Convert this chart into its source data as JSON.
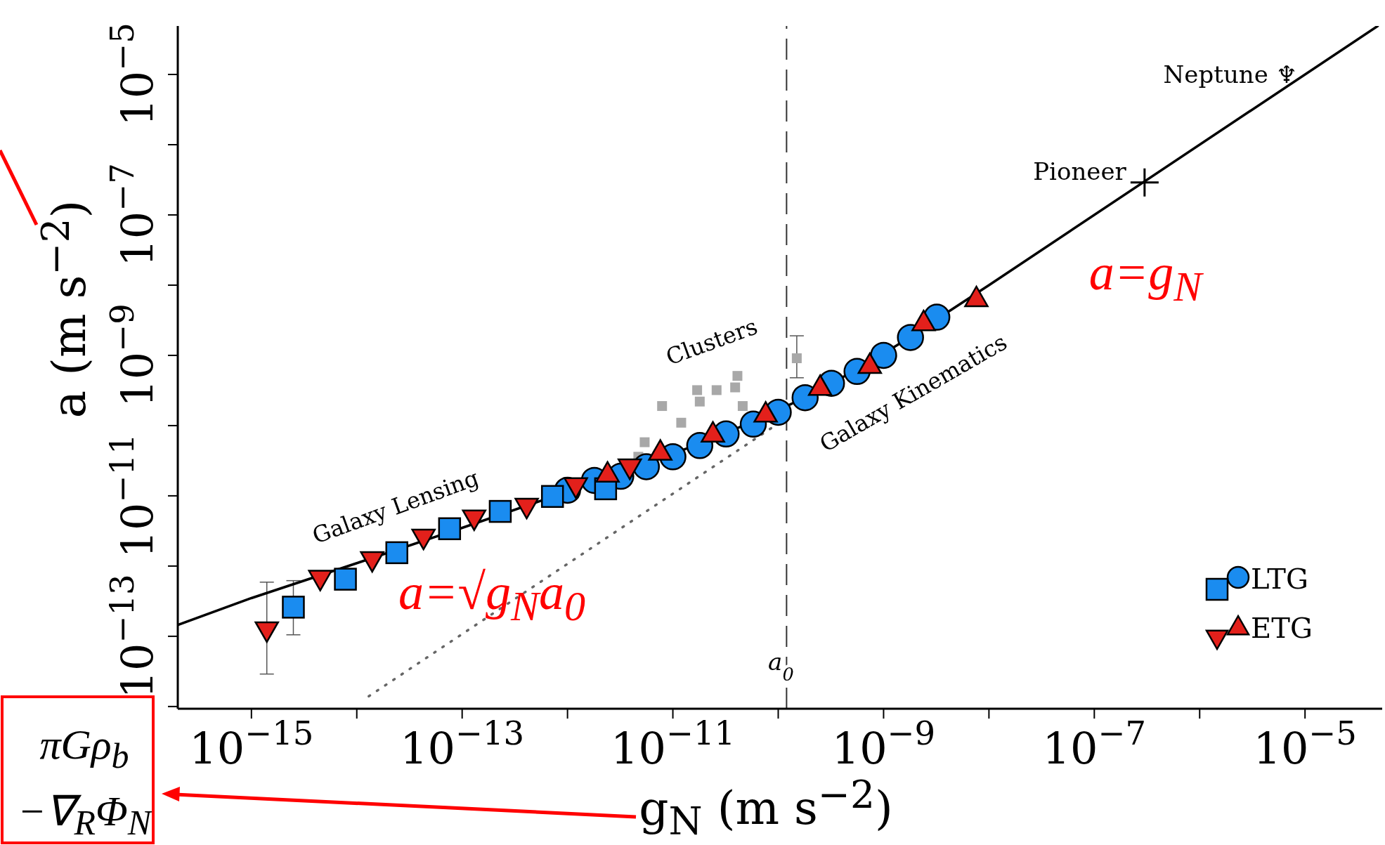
{
  "chart_data": {
    "type": "scatter",
    "xlabel": "g$_{N}$ (m s$^{−2}$)",
    "ylabel": "a (m s$^{−2}$)",
    "log": "xy",
    "legend": "bottom right",
    "grid": false,
    "xlim": [
      2e-16,
      5.4e-05
    ],
    "ylim": [
      9.3e-15,
      4.9e-05
    ],
    "xticks": [
      {
        "value": 1e-15,
        "label": "10$^{−15}$"
      },
      {
        "value": 1e-14,
        "label": null
      },
      {
        "value": 1e-13,
        "label": "10$^{−13}$"
      },
      {
        "value": 1e-12,
        "label": null
      },
      {
        "value": 1e-11,
        "label": "10$^{−11}$"
      },
      {
        "value": 1e-10,
        "label": null
      },
      {
        "value": 1e-09,
        "label": "10$^{−9}$"
      },
      {
        "value": 1e-08,
        "label": null
      },
      {
        "value": 1e-07,
        "label": "10$^{−7}$"
      },
      {
        "value": 1e-06,
        "label": null
      },
      {
        "value": 1e-05,
        "label": "10$^{−5}$"
      }
    ],
    "yticks": [
      {
        "value": 1e-14,
        "label": null
      },
      {
        "value": 1e-13,
        "label": "10$^{−13}$"
      },
      {
        "value": 1e-12,
        "label": null
      },
      {
        "value": 1e-11,
        "label": "10$^{−11}$"
      },
      {
        "value": 1e-10,
        "label": null
      },
      {
        "value": 1e-09,
        "label": "10$^{−9}$"
      },
      {
        "value": 1e-08,
        "label": null
      },
      {
        "value": 1e-07,
        "label": "10$^{−7}$"
      },
      {
        "value": 1e-06,
        "label": null
      },
      {
        "value": 1e-05,
        "label": "10$^{−5}$"
      }
    ],
    "ref_lines": [
      {
        "axis": "x",
        "value": 1.2e-10,
        "label": "a$_{0}$",
        "color": "#333333",
        "line_style": "dashed"
      }
    ],
    "series": [
      {
        "type": "line",
        "color": "#000000",
        "marker": "none",
        "line_style": "solid",
        "x": [
          2e-16,
          1e-15,
          1e-14,
          1e-13,
          5.6e-13,
          1.35e-11,
          4.3e-11,
          1.35e-10,
          4.2e-10,
          1.35e-09,
          1e-08,
          4.9e-05
        ],
        "values": [
          1.45e-13,
          3.5e-13,
          1.1e-12,
          3.5e-12,
          8.5e-12,
          4.7e-11,
          9.5e-11,
          2.06e-10,
          5e-10,
          1.4e-09,
          1e-08,
          4.9e-05
        ]
      },
      {
        "type": "line",
        "color": "#666666",
        "marker": "none",
        "line_style": "dotted",
        "x": [
          1.3e-14,
          1.4e-10
        ],
        "values": [
          1.4e-14,
          1.5e-10
        ]
      },
      {
        "type": "scatter",
        "color": "#a8a8a8",
        "marker": "square",
        "x": [
          1.5e-10,
          4.1e-11,
          3.9e-11,
          4.6e-11,
          2.6e-11,
          1.7e-11,
          7.9e-12,
          5.4e-12,
          4.7e-12,
          1.8e-11,
          1.2e-11
        ],
        "values": [
          9.1e-10,
          5.1e-10,
          3.5e-10,
          1.9e-10,
          3.2e-10,
          3.2e-10,
          1.9e-10,
          5.8e-11,
          3.6e-11,
          2.2e-10,
          1.1e-10
        ],
        "errors": [
          [
            4.8e-10,
            1.9e-09
          ],
          null,
          null,
          null,
          null,
          null,
          null,
          null,
          null,
          null,
          null
        ]
      },
      {
        "type": "scatter",
        "name": "LTG",
        "color": "#1a8cf0",
        "marker": "circle",
        "x": [
          1e-12,
          1.8e-12,
          3.2e-12,
          5.6e-12,
          1e-11,
          1.8e-11,
          3.2e-11,
          5.8e-11,
          1e-10,
          1.8e-10,
          3.2e-10,
          5.6e-10,
          1e-09,
          1.8e-09,
          3.2e-09
        ],
        "values": [
          1.2e-11,
          1.66e-11,
          1.9e-11,
          2.6e-11,
          3.6e-11,
          5.2e-11,
          7.6e-11,
          1.05e-10,
          1.55e-10,
          2.5e-10,
          4e-10,
          5.9e-10,
          1e-09,
          1.8e-09,
          3.5e-09
        ]
      },
      {
        "type": "scatter",
        "color": "#1a8cf0",
        "marker": "square",
        "x": [
          2.5e-15,
          7.8e-15,
          2.4e-14,
          7.6e-14,
          2.3e-13,
          7.2e-13,
          2.3e-12
        ],
        "values": [
          2.6e-13,
          6.5e-13,
          1.55e-12,
          3.4e-12,
          6e-12,
          9.8e-12,
          1.26e-11
        ],
        "errors": [
          [
            1.05e-13,
            6.2e-13
          ],
          null,
          null,
          null,
          null,
          null,
          null
        ]
      },
      {
        "type": "scatter",
        "name": "ETG",
        "color": "#e3201b",
        "marker": "triangle",
        "x": [
          2.4e-12,
          7.6e-12,
          2.4e-11,
          7.6e-11,
          2.5e-10,
          7.4e-10,
          2.4e-09,
          7.6e-09
        ],
        "values": [
          2.1e-11,
          4.3e-11,
          7.8e-11,
          1.5e-10,
          3.6e-10,
          7.4e-10,
          3e-09,
          6.6e-09
        ]
      },
      {
        "type": "scatter",
        "color": "#e3201b",
        "marker": "triangle-down",
        "x": [
          1.4e-15,
          4.5e-15,
          1.4e-14,
          4.3e-14,
          1.3e-13,
          4.1e-13,
          1.2e-12,
          3.9e-12
        ],
        "values": [
          1.2e-13,
          6.5e-13,
          1.2e-12,
          2.5e-12,
          4.7e-12,
          6.9e-12,
          1.35e-11,
          2.5e-11
        ],
        "errors": [
          [
            2.9e-14,
            5.9e-13
          ],
          null,
          null,
          null,
          null,
          null,
          null,
          null
        ]
      },
      {
        "type": "scatter",
        "color": "#000000",
        "marker": "cross",
        "x": [
          3e-07
        ],
        "values": [
          2.9e-07
        ]
      }
    ],
    "annotations": [
      "Galaxy Lensing",
      "Clusters",
      "Galaxy Kinematics",
      {
        "text": "Neptune ♆",
        "x": 6.6e-06,
        "y": 6.3e-06
      },
      {
        "text": "Pioneer",
        "x": 3e-07,
        "y": 2.9e-07
      },
      "a=g$_{N}$",
      "a=√g$_{N}$a$_{0}$",
      "πGρ$_{b}$",
      "−∇$_{R}$Φ$_{N}$"
    ]
  }
}
